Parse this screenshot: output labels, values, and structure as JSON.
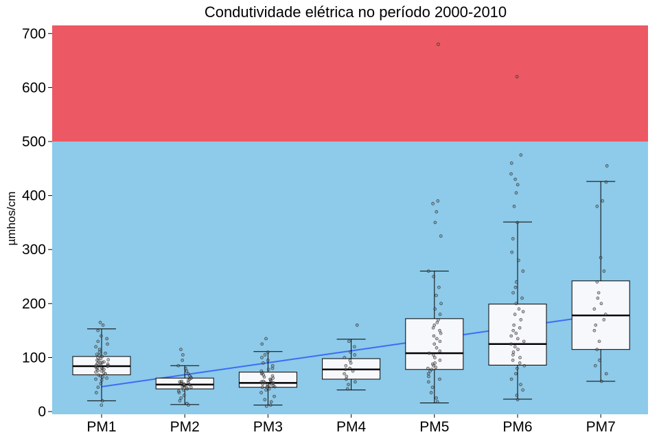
{
  "chart_data": {
    "type": "box",
    "title": "Condutividade elétrica no período 2000-2010",
    "xlabel": "",
    "ylabel": "µmhos/cm",
    "ylim": [
      -5,
      715
    ],
    "yticks": [
      "0",
      "100",
      "200",
      "300",
      "400",
      "500",
      "600",
      "700"
    ],
    "ytick_values": [
      0,
      100,
      200,
      300,
      400,
      500,
      600,
      700
    ],
    "categories": [
      "PM1",
      "PM2",
      "PM3",
      "PM4",
      "PM5",
      "PM6",
      "PM7"
    ],
    "bands": [
      {
        "from": -5,
        "to": 500,
        "color": "#8ecae9"
      },
      {
        "from": 500,
        "to": 715,
        "color": "#ec5863"
      }
    ],
    "boxes": [
      {
        "whisker_low": 20,
        "q1": 68,
        "median": 84,
        "q3": 102,
        "whisker_high": 153
      },
      {
        "whisker_low": 13,
        "q1": 42,
        "median": 50,
        "q3": 62,
        "whisker_high": 85
      },
      {
        "whisker_low": 12,
        "q1": 45,
        "median": 53,
        "q3": 73,
        "whisker_high": 111
      },
      {
        "whisker_low": 40,
        "q1": 60,
        "median": 78,
        "q3": 98,
        "whisker_high": 134
      },
      {
        "whisker_low": 16,
        "q1": 78,
        "median": 108,
        "q3": 172,
        "whisker_high": 260
      },
      {
        "whisker_low": 23,
        "q1": 86,
        "median": 125,
        "q3": 199,
        "whisker_high": 351
      },
      {
        "whisker_low": 56,
        "q1": 115,
        "median": 178,
        "q3": 242,
        "whisker_high": 426
      }
    ],
    "points": [
      [
        12,
        20,
        35,
        45,
        52,
        58,
        60,
        62,
        64,
        66,
        68,
        70,
        72,
        73,
        75,
        76,
        78,
        79,
        80,
        81,
        82,
        83,
        84,
        85,
        86,
        87,
        88,
        89,
        90,
        91,
        92,
        94,
        95,
        96,
        98,
        100,
        102,
        104,
        106,
        108,
        110,
        115,
        120,
        125,
        130,
        135,
        140,
        150,
        160,
        165
      ],
      [
        12,
        15,
        20,
        25,
        30,
        35,
        38,
        40,
        42,
        44,
        45,
        46,
        47,
        48,
        49,
        50,
        50,
        51,
        52,
        53,
        54,
        55,
        56,
        58,
        60,
        62,
        64,
        66,
        70,
        75,
        80,
        85,
        95,
        105,
        115
      ],
      [
        10,
        12,
        18,
        22,
        28,
        35,
        40,
        42,
        44,
        45,
        46,
        47,
        48,
        49,
        50,
        51,
        52,
        53,
        54,
        55,
        56,
        57,
        58,
        60,
        62,
        64,
        66,
        68,
        70,
        72,
        75,
        78,
        80,
        85,
        90,
        95,
        100,
        105,
        110,
        125,
        135
      ],
      [
        42,
        50,
        55,
        60,
        65,
        70,
        75,
        78,
        80,
        85,
        90,
        95,
        100,
        105,
        110,
        120,
        130,
        160
      ],
      [
        18,
        25,
        35,
        45,
        55,
        60,
        65,
        70,
        75,
        78,
        80,
        82,
        85,
        88,
        90,
        95,
        100,
        105,
        108,
        112,
        118,
        125,
        130,
        135,
        140,
        145,
        150,
        155,
        160,
        165,
        170,
        180,
        190,
        200,
        215,
        230,
        250,
        260,
        325,
        350,
        370,
        385,
        390,
        680
      ],
      [
        22,
        30,
        40,
        50,
        60,
        70,
        80,
        85,
        90,
        95,
        100,
        105,
        110,
        115,
        120,
        125,
        130,
        135,
        140,
        145,
        150,
        155,
        160,
        170,
        180,
        185,
        190,
        200,
        210,
        220,
        230,
        240,
        260,
        280,
        295,
        320,
        350,
        380,
        405,
        420,
        430,
        440,
        460,
        475,
        620
      ],
      [
        56,
        70,
        85,
        95,
        115,
        130,
        150,
        160,
        170,
        180,
        190,
        200,
        210,
        220,
        240,
        260,
        285,
        380,
        390,
        425,
        455
      ]
    ],
    "trend": {
      "from": [
        1,
        46
      ],
      "to": [
        7,
        179
      ],
      "color": "#3a6cf6"
    }
  }
}
